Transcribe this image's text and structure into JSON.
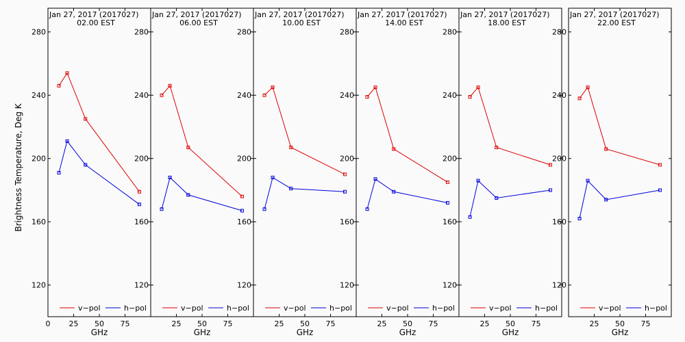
{
  "chart_data": {
    "type": "line",
    "ylabel": "Brightness Temperature, Deg K",
    "xlabel": "GHz",
    "x_ticks": [
      0,
      25,
      50,
      75,
      100
    ],
    "y_ticks": [
      120,
      160,
      200,
      240,
      280
    ],
    "xlim": [
      0,
      100
    ],
    "ylim": [
      100,
      295
    ],
    "colors": {
      "v-pol": "#e00000",
      "h-pol": "#0000dd"
    },
    "legend_labels": [
      "v−pol",
      "h−pol"
    ],
    "panels": [
      {
        "date": "Jan 27, 2017 (2017027)",
        "time": "02.00 EST",
        "series": [
          {
            "name": "v−pol",
            "x": [
              10.7,
              18.7,
              36.5,
              89
            ],
            "y": [
              246,
              254,
              225,
              179
            ]
          },
          {
            "name": "h−pol",
            "x": [
              10.7,
              18.7,
              36.5,
              89
            ],
            "y": [
              191,
              211,
              196,
              171
            ]
          }
        ]
      },
      {
        "date": "Jan 27, 2017 (2017027)",
        "time": "06.00 EST",
        "series": [
          {
            "name": "v−pol",
            "x": [
              10.7,
              18.7,
              36.5,
              89
            ],
            "y": [
              240,
              246,
              207,
              176
            ]
          },
          {
            "name": "h−pol",
            "x": [
              10.7,
              18.7,
              36.5,
              89
            ],
            "y": [
              168,
              188,
              177,
              167
            ]
          }
        ]
      },
      {
        "date": "Jan 27, 2017 (2017027)",
        "time": "10.00 EST",
        "series": [
          {
            "name": "v−pol",
            "x": [
              10.7,
              18.7,
              36.5,
              89
            ],
            "y": [
              240,
              245,
              207,
              190
            ]
          },
          {
            "name": "h−pol",
            "x": [
              10.7,
              18.7,
              36.5,
              89
            ],
            "y": [
              168,
              188,
              181,
              179
            ]
          }
        ]
      },
      {
        "date": "Jan 27, 2017 (2017027)",
        "time": "14.00 EST",
        "series": [
          {
            "name": "v−pol",
            "x": [
              10.7,
              18.7,
              36.5,
              89
            ],
            "y": [
              239,
              245,
              206,
              185
            ]
          },
          {
            "name": "h−pol",
            "x": [
              10.7,
              18.7,
              36.5,
              89
            ],
            "y": [
              168,
              187,
              179,
              172
            ]
          }
        ]
      },
      {
        "date": "Jan 27, 2017 (2017027)",
        "time": "18.00 EST",
        "series": [
          {
            "name": "v−pol",
            "x": [
              10.7,
              18.7,
              36.5,
              89
            ],
            "y": [
              239,
              245,
              207,
              196
            ]
          },
          {
            "name": "h−pol",
            "x": [
              10.7,
              18.7,
              36.5,
              89
            ],
            "y": [
              163,
              186,
              175,
              180
            ]
          }
        ]
      },
      {
        "date": "Jan 27, 2017 (2017027)",
        "time": "22.00 EST",
        "series": [
          {
            "name": "v−pol",
            "x": [
              10.7,
              18.7,
              36.5,
              89
            ],
            "y": [
              238,
              245,
              206,
              196
            ]
          },
          {
            "name": "h−pol",
            "x": [
              10.7,
              18.7,
              36.5,
              89
            ],
            "y": [
              162,
              186,
              174,
              180
            ]
          }
        ]
      }
    ]
  }
}
